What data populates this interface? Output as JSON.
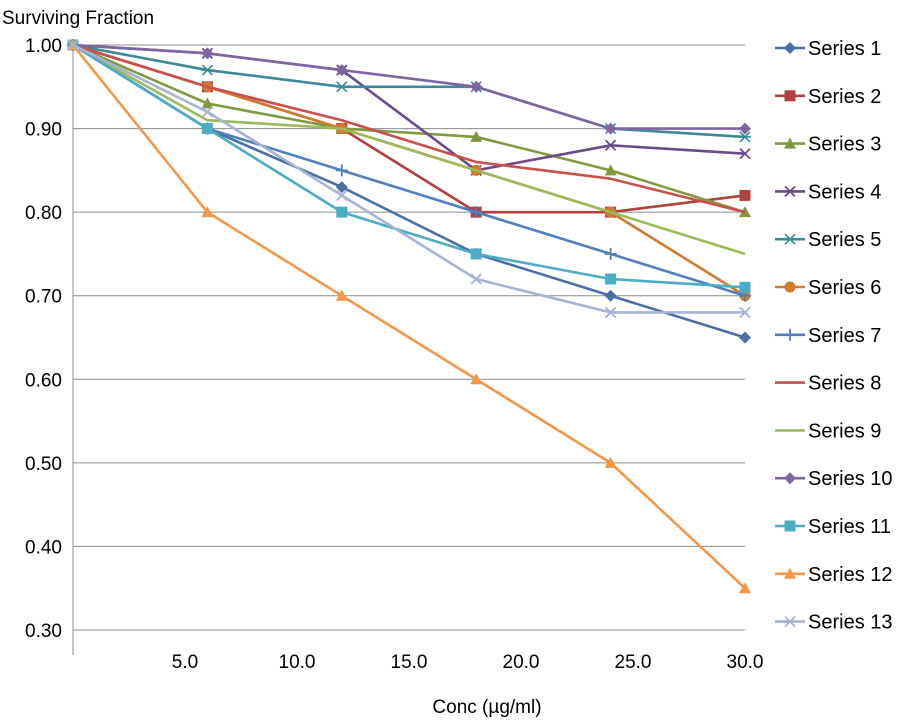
{
  "chart_data": {
    "type": "line",
    "title": "",
    "ylabel": "Surviving Fraction",
    "xlabel": "Conc (µg/ml)",
    "xlim": [
      0,
      30
    ],
    "ylim": [
      0.3,
      1.0
    ],
    "xticks": [
      5.0,
      10.0,
      15.0,
      20.0,
      25.0,
      30.0
    ],
    "xtick_labels": [
      "5.0",
      "10.0",
      "15.0",
      "20.0",
      "25.0",
      "30.0"
    ],
    "yticks": [
      0.3,
      0.4,
      0.5,
      0.6,
      0.7,
      0.8,
      0.9,
      1.0
    ],
    "ytick_labels": [
      "0.30",
      "0.40",
      "0.50",
      "0.60",
      "0.70",
      "0.80",
      "0.90",
      "1.00"
    ],
    "grid": "horizontal",
    "legend_position": "right",
    "x": [
      0,
      6,
      12,
      18,
      24,
      30
    ],
    "series": [
      {
        "name": "Series 1",
        "color": "#4a6fa5",
        "marker": "diamond",
        "values": [
          1.0,
          0.9,
          0.83,
          0.75,
          0.7,
          0.65
        ]
      },
      {
        "name": "Series 2",
        "color": "#b0413e",
        "marker": "square",
        "values": [
          1.0,
          0.95,
          0.9,
          0.8,
          0.8,
          0.82
        ]
      },
      {
        "name": "Series 3",
        "color": "#7f9a3e",
        "marker": "triangle",
        "values": [
          1.0,
          0.93,
          0.9,
          0.89,
          0.85,
          0.8
        ]
      },
      {
        "name": "Series 4",
        "color": "#6a4a8c",
        "marker": "x",
        "values": [
          1.0,
          0.99,
          0.97,
          0.85,
          0.88,
          0.87
        ]
      },
      {
        "name": "Series 5",
        "color": "#3a8a9a",
        "marker": "star",
        "values": [
          1.0,
          0.97,
          0.95,
          0.95,
          0.9,
          0.89
        ]
      },
      {
        "name": "Series 6",
        "color": "#d07a2e",
        "marker": "circle",
        "values": [
          1.0,
          0.95,
          0.9,
          0.85,
          0.8,
          0.7
        ]
      },
      {
        "name": "Series 7",
        "color": "#4f7fc0",
        "marker": "plus",
        "values": [
          1.0,
          0.9,
          0.85,
          0.8,
          0.75,
          0.7
        ]
      },
      {
        "name": "Series 8",
        "color": "#c9504b",
        "marker": "none",
        "values": [
          1.0,
          0.95,
          0.91,
          0.86,
          0.84,
          0.8
        ]
      },
      {
        "name": "Series 9",
        "color": "#9bbb59",
        "marker": "none",
        "values": [
          1.0,
          0.91,
          0.9,
          0.85,
          0.8,
          0.75
        ]
      },
      {
        "name": "Series 10",
        "color": "#8064a2",
        "marker": "diamond",
        "values": [
          1.0,
          0.99,
          0.97,
          0.95,
          0.9,
          0.9
        ]
      },
      {
        "name": "Series 11",
        "color": "#4bacc6",
        "marker": "square",
        "values": [
          1.0,
          0.9,
          0.8,
          0.75,
          0.72,
          0.71
        ]
      },
      {
        "name": "Series 12",
        "color": "#f79646",
        "marker": "triangle",
        "values": [
          1.0,
          0.8,
          0.7,
          0.6,
          0.5,
          0.35
        ]
      },
      {
        "name": "Series 13",
        "color": "#a5b4d4",
        "marker": "x",
        "values": [
          1.0,
          0.92,
          0.82,
          0.72,
          0.68,
          0.68
        ]
      }
    ]
  }
}
